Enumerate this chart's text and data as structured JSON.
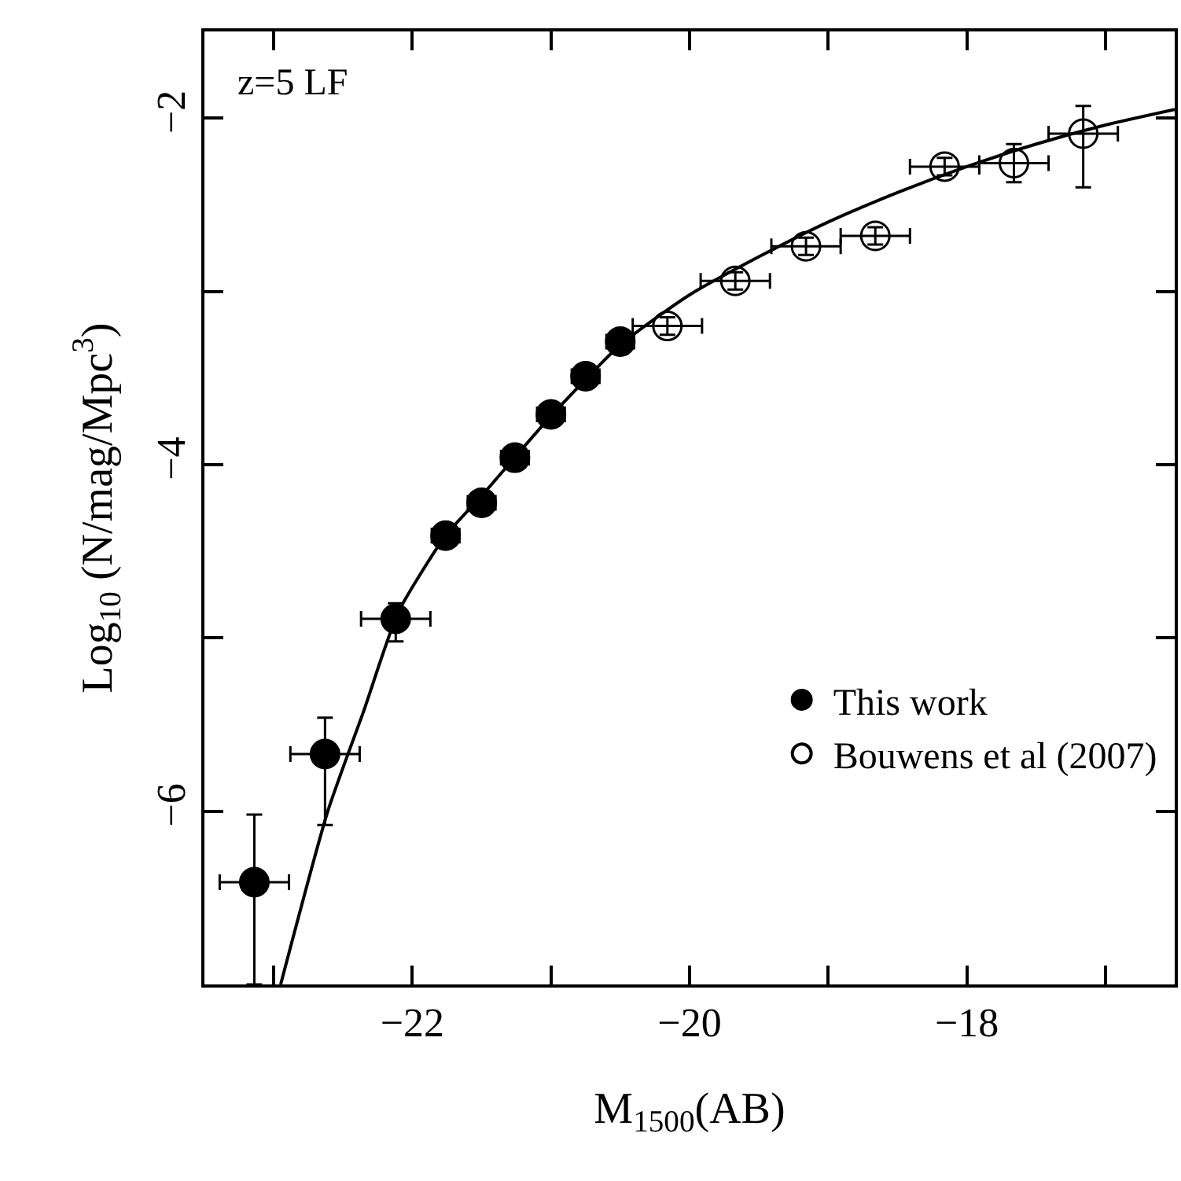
{
  "chart_data": {
    "type": "scatter",
    "xlabel": "M$_{1500}$(AB)",
    "ylabel": "Log$_{10}$ (N/mag/Mpc$^{3}$)",
    "annotations": [
      "z=5 LF"
    ],
    "xlim": [
      -23.5,
      -16.5
    ],
    "ylim": [
      -7,
      -1.5
    ],
    "xticks": [
      {
        "value": -23,
        "label": null
      },
      -22,
      {
        "value": -21,
        "label": null
      },
      -20,
      {
        "value": -19,
        "label": null
      },
      -18,
      {
        "value": -17,
        "label": null
      }
    ],
    "yticks": [
      {
        "value": -7,
        "label": null
      },
      -6,
      {
        "value": -5,
        "label": null
      },
      -4,
      {
        "value": -3,
        "label": null
      },
      -2
    ],
    "legend": "bottom right",
    "series": [
      {
        "name": "This work",
        "color": "#000000",
        "marker": "circle",
        "x": [
          -23.14,
          -22.63,
          -22.12,
          -21.76,
          -21.5,
          -21.26,
          -21.0,
          -20.75,
          -20.5
        ],
        "values": [
          -6.41,
          -5.67,
          -4.89,
          -4.41,
          -4.22,
          -3.96,
          -3.71,
          -3.49,
          -3.29
        ],
        "errors": [
          [
            -7.0,
            -6.02
          ],
          [
            -6.08,
            -5.46
          ],
          [
            -5.02,
            -4.8
          ],
          0.05,
          0.05,
          0.05,
          0.05,
          0.05,
          0.05
        ],
        "xerrors": [
          0.25,
          0.25,
          0.25,
          0.1,
          0.1,
          0.1,
          0.1,
          0.1,
          0.1
        ]
      },
      {
        "name": "Bouwens et al (2007)",
        "color": "#000000",
        "marker": "circle",
        "x": [
          -20.16,
          -19.67,
          -19.16,
          -18.66,
          -18.16,
          -17.66,
          -17.16
        ],
        "values": [
          -3.2,
          -2.94,
          -2.74,
          -2.68,
          -2.28,
          -2.26,
          -2.09
        ],
        "errors": [
          0.05,
          0.05,
          0.05,
          0.05,
          0.05,
          0.11,
          [
            -2.4,
            -1.93
          ]
        ],
        "xerrors": [
          0.25,
          0.25,
          0.25,
          0.25,
          0.25,
          0.25,
          0.25
        ]
      },
      {
        "type": "line",
        "color": "#000000",
        "marker": "none",
        "line_style": "solid",
        "x": [
          -22.95,
          -22.61,
          -22.35,
          -22.1,
          -21.76,
          -21.5,
          -21.0,
          -20.5,
          -20.0,
          -19.5,
          -19.0,
          -18.5,
          -18.0,
          -17.5,
          -17.0,
          -16.5
        ],
        "values": [
          -7.0,
          -6.0,
          -5.42,
          -4.85,
          -4.41,
          -4.18,
          -3.72,
          -3.31,
          -3.02,
          -2.8,
          -2.6,
          -2.43,
          -2.28,
          -2.15,
          -2.04,
          -1.95
        ]
      }
    ]
  }
}
